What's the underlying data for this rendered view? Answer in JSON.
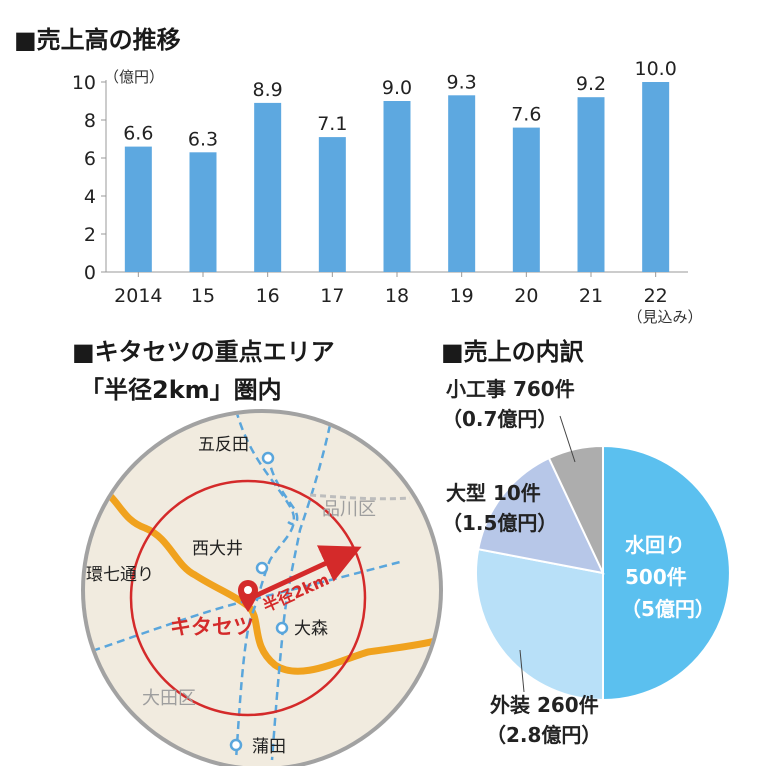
{
  "sales_chart": {
    "title": "■売上高の推移",
    "unit_label": "（億円）",
    "year_note": "（見込み）"
  },
  "chart_data": [
    {
      "type": "bar",
      "title": "■売上高の推移",
      "ylabel": "（億円）",
      "ylim": [
        0,
        10
      ],
      "yticks": [
        "0",
        "2",
        "4",
        "6",
        "8",
        "10"
      ],
      "categories": [
        "2014",
        "15",
        "16",
        "17",
        "18",
        "19",
        "20",
        "21",
        "22"
      ],
      "values": [
        6.6,
        6.3,
        8.9,
        7.1,
        9.0,
        9.3,
        7.6,
        9.2,
        10.0
      ],
      "value_labels": [
        "6.6",
        "6.3",
        "8.9",
        "7.1",
        "9.0",
        "9.3",
        "7.6",
        "9.2",
        "10.0"
      ],
      "grid": false,
      "bar_color": "#5da8e0"
    },
    {
      "type": "pie",
      "title": "■売上の内訳",
      "slices": [
        {
          "name": "水回り",
          "count": "500件",
          "amount": "（5億円）",
          "value": 5.0,
          "color": "#5bc0ef"
        },
        {
          "name": "外装",
          "count": "260件",
          "amount": "（2.8億円）",
          "value": 2.8,
          "color": "#b8e0f8"
        },
        {
          "name": "大型",
          "count": "10件",
          "amount": "（1.5億円）",
          "value": 1.5,
          "color": "#b7c7e8"
        },
        {
          "name": "小工事",
          "count": "760件",
          "amount": "（0.7億円）",
          "value": 0.7,
          "color": "#adadad"
        }
      ]
    }
  ],
  "map": {
    "title_line1": "■キタセツの重点エリア",
    "title_line2": "「半径2km」圏内",
    "company_label": "キタセツ",
    "radius_label": "半径2km",
    "places": {
      "gotanda": "五反田",
      "nishi_oi": "西大井",
      "omori": "大森",
      "kamata": "蒲田",
      "kannana": "環七通り",
      "shinagawa_ku": "品川区",
      "ota_ku": "大田区"
    },
    "colors": {
      "land": "#f1ebdf",
      "rim": "#a2a2a2",
      "ring": "#d42a2a",
      "road": "#f0a21e",
      "rail": "#5aa6dc"
    }
  },
  "breakdown": {
    "title": "■売上の内訳"
  }
}
